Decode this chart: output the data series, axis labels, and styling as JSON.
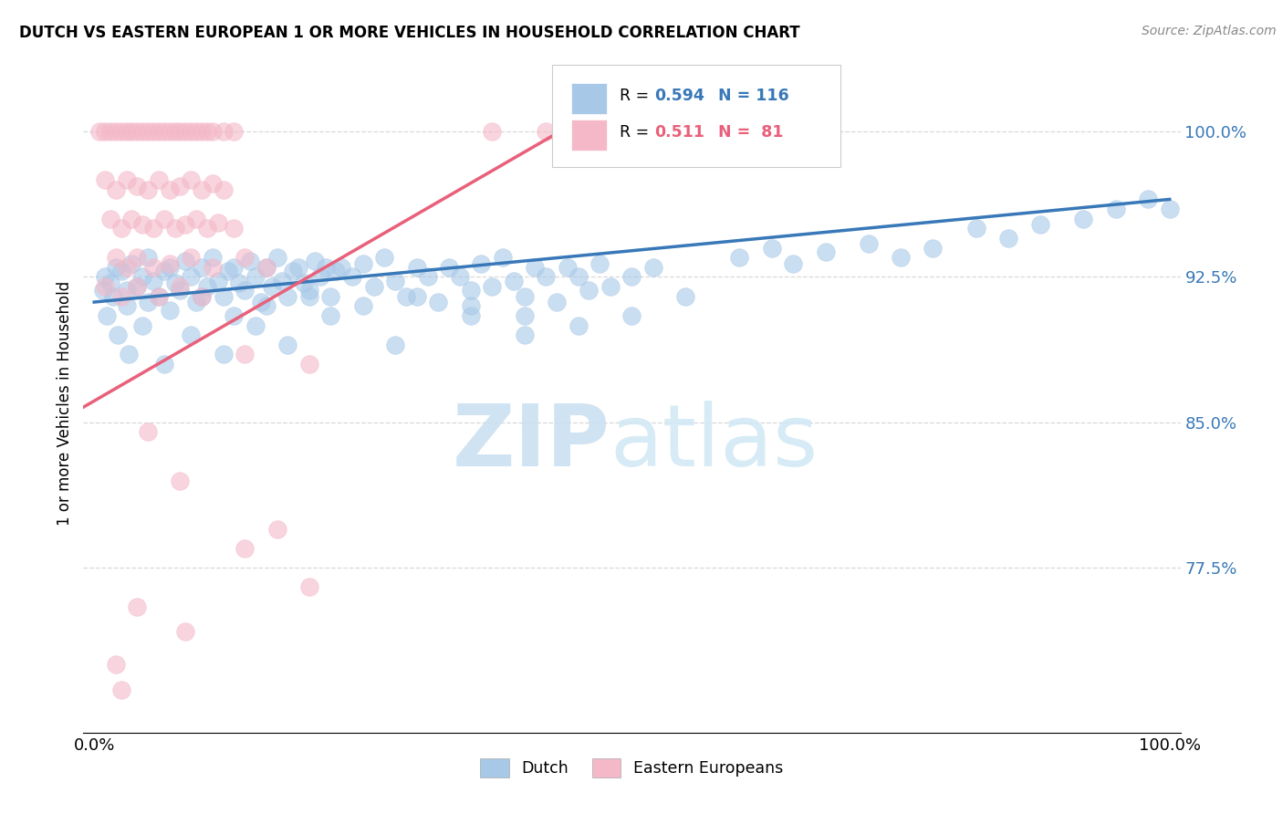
{
  "title": "DUTCH VS EASTERN EUROPEAN 1 OR MORE VEHICLES IN HOUSEHOLD CORRELATION CHART",
  "source": "Source: ZipAtlas.com",
  "ylabel": "1 or more Vehicles in Household",
  "xlim": [
    0.0,
    100.0
  ],
  "ylim": [
    69.0,
    103.0
  ],
  "yticks": [
    77.5,
    85.0,
    92.5,
    100.0
  ],
  "xtick_vals": [
    0.0,
    12.5,
    25.0,
    37.5,
    50.0,
    62.5,
    75.0,
    87.5,
    100.0
  ],
  "xtick_labels": [
    "0.0%",
    "",
    "",
    "",
    "",
    "",
    "",
    "",
    "100.0%"
  ],
  "ytick_labels": [
    "77.5%",
    "85.0%",
    "92.5%",
    "100.0%"
  ],
  "watermark_zip": "ZIP",
  "watermark_atlas": "atlas",
  "dutch_color": "#a8c8e8",
  "eastern_color": "#f4b8c8",
  "dutch_line_color": "#3878b8",
  "eastern_line_color": "#e8607a",
  "dutch_line": [
    [
      0,
      91.2
    ],
    [
      100,
      96.5
    ]
  ],
  "eastern_line": [
    [
      -5,
      84.5
    ],
    [
      48,
      101.5
    ]
  ],
  "dutch_points": [
    [
      1.0,
      92.5
    ],
    [
      1.5,
      92.2
    ],
    [
      2.0,
      93.0
    ],
    [
      2.5,
      92.8
    ],
    [
      3.0,
      91.8
    ],
    [
      3.5,
      93.2
    ],
    [
      4.0,
      92.0
    ],
    [
      4.5,
      92.5
    ],
    [
      5.0,
      93.5
    ],
    [
      5.5,
      92.3
    ],
    [
      6.0,
      91.5
    ],
    [
      6.5,
      92.8
    ],
    [
      7.0,
      93.0
    ],
    [
      7.5,
      92.2
    ],
    [
      8.0,
      91.8
    ],
    [
      8.5,
      93.3
    ],
    [
      9.0,
      92.5
    ],
    [
      9.5,
      91.2
    ],
    [
      10.0,
      93.0
    ],
    [
      10.5,
      92.0
    ],
    [
      11.0,
      93.5
    ],
    [
      11.5,
      92.3
    ],
    [
      12.0,
      91.5
    ],
    [
      12.5,
      92.8
    ],
    [
      13.0,
      93.0
    ],
    [
      13.5,
      92.2
    ],
    [
      14.0,
      91.8
    ],
    [
      14.5,
      93.3
    ],
    [
      15.0,
      92.5
    ],
    [
      15.5,
      91.2
    ],
    [
      16.0,
      93.0
    ],
    [
      16.5,
      92.0
    ],
    [
      17.0,
      93.5
    ],
    [
      17.5,
      92.3
    ],
    [
      18.0,
      91.5
    ],
    [
      18.5,
      92.8
    ],
    [
      19.0,
      93.0
    ],
    [
      19.5,
      92.2
    ],
    [
      20.0,
      91.8
    ],
    [
      20.5,
      93.3
    ],
    [
      21.0,
      92.5
    ],
    [
      21.5,
      93.0
    ],
    [
      22.0,
      91.5
    ],
    [
      22.5,
      92.8
    ],
    [
      23.0,
      93.0
    ],
    [
      24.0,
      92.5
    ],
    [
      25.0,
      93.2
    ],
    [
      26.0,
      92.0
    ],
    [
      27.0,
      93.5
    ],
    [
      28.0,
      92.3
    ],
    [
      29.0,
      91.5
    ],
    [
      30.0,
      93.0
    ],
    [
      31.0,
      92.5
    ],
    [
      32.0,
      91.2
    ],
    [
      33.0,
      93.0
    ],
    [
      34.0,
      92.5
    ],
    [
      35.0,
      91.8
    ],
    [
      36.0,
      93.2
    ],
    [
      37.0,
      92.0
    ],
    [
      38.0,
      93.5
    ],
    [
      39.0,
      92.3
    ],
    [
      40.0,
      91.5
    ],
    [
      41.0,
      93.0
    ],
    [
      42.0,
      92.5
    ],
    [
      43.0,
      91.2
    ],
    [
      44.0,
      93.0
    ],
    [
      45.0,
      92.5
    ],
    [
      46.0,
      91.8
    ],
    [
      47.0,
      93.2
    ],
    [
      48.0,
      92.0
    ],
    [
      50.0,
      92.5
    ],
    [
      52.0,
      93.0
    ],
    [
      55.0,
      91.5
    ],
    [
      60.0,
      93.5
    ],
    [
      63.0,
      94.0
    ],
    [
      65.0,
      93.2
    ],
    [
      68.0,
      93.8
    ],
    [
      72.0,
      94.2
    ],
    [
      75.0,
      93.5
    ],
    [
      78.0,
      94.0
    ],
    [
      82.0,
      95.0
    ],
    [
      85.0,
      94.5
    ],
    [
      88.0,
      95.2
    ],
    [
      92.0,
      95.5
    ],
    [
      95.0,
      96.0
    ],
    [
      98.0,
      96.5
    ],
    [
      100.0,
      96.0
    ],
    [
      1.2,
      90.5
    ],
    [
      2.2,
      89.5
    ],
    [
      3.2,
      88.5
    ],
    [
      4.5,
      90.0
    ],
    [
      6.5,
      88.0
    ],
    [
      9.0,
      89.5
    ],
    [
      12.0,
      88.5
    ],
    [
      15.0,
      90.0
    ],
    [
      18.0,
      89.0
    ],
    [
      22.0,
      90.5
    ],
    [
      28.0,
      89.0
    ],
    [
      35.0,
      90.5
    ],
    [
      40.0,
      89.5
    ],
    [
      45.0,
      90.0
    ],
    [
      50.0,
      90.5
    ],
    [
      0.8,
      91.8
    ],
    [
      1.8,
      91.5
    ],
    [
      3.0,
      91.0
    ],
    [
      5.0,
      91.2
    ],
    [
      7.0,
      90.8
    ],
    [
      10.0,
      91.5
    ],
    [
      13.0,
      90.5
    ],
    [
      16.0,
      91.0
    ],
    [
      20.0,
      91.5
    ],
    [
      25.0,
      91.0
    ],
    [
      30.0,
      91.5
    ],
    [
      35.0,
      91.0
    ],
    [
      40.0,
      90.5
    ]
  ],
  "eastern_points": [
    [
      0.5,
      100.0
    ],
    [
      1.0,
      100.0
    ],
    [
      1.5,
      100.0
    ],
    [
      2.0,
      100.0
    ],
    [
      2.5,
      100.0
    ],
    [
      3.0,
      100.0
    ],
    [
      3.5,
      100.0
    ],
    [
      4.0,
      100.0
    ],
    [
      4.5,
      100.0
    ],
    [
      5.0,
      100.0
    ],
    [
      5.5,
      100.0
    ],
    [
      6.0,
      100.0
    ],
    [
      6.5,
      100.0
    ],
    [
      7.0,
      100.0
    ],
    [
      7.5,
      100.0
    ],
    [
      8.0,
      100.0
    ],
    [
      8.5,
      100.0
    ],
    [
      9.0,
      100.0
    ],
    [
      9.5,
      100.0
    ],
    [
      10.0,
      100.0
    ],
    [
      10.5,
      100.0
    ],
    [
      11.0,
      100.0
    ],
    [
      12.0,
      100.0
    ],
    [
      13.0,
      100.0
    ],
    [
      37.0,
      100.0
    ],
    [
      42.0,
      100.0
    ],
    [
      1.0,
      97.5
    ],
    [
      2.0,
      97.0
    ],
    [
      3.0,
      97.5
    ],
    [
      4.0,
      97.2
    ],
    [
      5.0,
      97.0
    ],
    [
      6.0,
      97.5
    ],
    [
      7.0,
      97.0
    ],
    [
      8.0,
      97.2
    ],
    [
      9.0,
      97.5
    ],
    [
      10.0,
      97.0
    ],
    [
      11.0,
      97.3
    ],
    [
      12.0,
      97.0
    ],
    [
      1.5,
      95.5
    ],
    [
      2.5,
      95.0
    ],
    [
      3.5,
      95.5
    ],
    [
      4.5,
      95.2
    ],
    [
      5.5,
      95.0
    ],
    [
      6.5,
      95.5
    ],
    [
      7.5,
      95.0
    ],
    [
      8.5,
      95.2
    ],
    [
      9.5,
      95.5
    ],
    [
      10.5,
      95.0
    ],
    [
      11.5,
      95.3
    ],
    [
      13.0,
      95.0
    ],
    [
      2.0,
      93.5
    ],
    [
      3.0,
      93.0
    ],
    [
      4.0,
      93.5
    ],
    [
      5.5,
      93.0
    ],
    [
      7.0,
      93.2
    ],
    [
      9.0,
      93.5
    ],
    [
      11.0,
      93.0
    ],
    [
      14.0,
      93.5
    ],
    [
      16.0,
      93.0
    ],
    [
      1.0,
      92.0
    ],
    [
      2.5,
      91.5
    ],
    [
      4.0,
      92.0
    ],
    [
      6.0,
      91.5
    ],
    [
      8.0,
      92.0
    ],
    [
      10.0,
      91.5
    ],
    [
      14.0,
      88.5
    ],
    [
      20.0,
      88.0
    ],
    [
      5.0,
      84.5
    ],
    [
      8.0,
      82.0
    ],
    [
      17.0,
      79.5
    ],
    [
      14.0,
      78.5
    ],
    [
      20.0,
      76.5
    ],
    [
      4.0,
      75.5
    ],
    [
      8.5,
      74.2
    ],
    [
      2.0,
      72.5
    ],
    [
      2.5,
      71.2
    ]
  ]
}
